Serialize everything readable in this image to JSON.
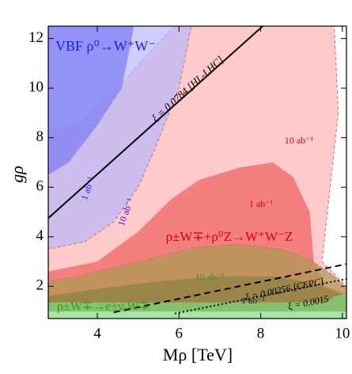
{
  "chart_data": {
    "type": "region",
    "xlabel": "Mρ [TeV]",
    "ylabel": "gρ",
    "xlim": [
      2.8,
      10.1
    ],
    "ylim": [
      0.7,
      12.5
    ],
    "xticks": [
      4,
      6,
      8,
      10
    ],
    "yticks": [
      2,
      4,
      6,
      8,
      10,
      12
    ],
    "regions": [
      {
        "color": "#ffb3b3",
        "dashed": true,
        "x": [
          2.8,
          2.8,
          3.6,
          4.5,
          5.3,
          5.9,
          9.8,
          9.9,
          9.7,
          9.5,
          10.1,
          10.1
        ],
        "y": [
          1.0,
          8.2,
          8.6,
          10.0,
          11.5,
          12.5,
          12.5,
          9.0,
          6.0,
          3.0,
          2.0,
          1.0
        ]
      },
      {
        "color": "#f06060",
        "dashed": false,
        "x": [
          2.8,
          2.8,
          4.0,
          5.0,
          5.8,
          6.5,
          7.5,
          8.3,
          8.8,
          9.2,
          9.3,
          9.6,
          10.1,
          10.1
        ],
        "y": [
          1.0,
          2.6,
          3.0,
          4.2,
          5.5,
          6.3,
          6.8,
          7.0,
          6.4,
          5.0,
          3.0,
          2.0,
          1.7,
          1.0
        ]
      },
      {
        "color": "#a89a50",
        "dashed": true,
        "x": [
          2.8,
          2.8,
          3.5,
          4.5,
          5.5,
          6.5,
          7.5,
          8.5,
          9.2,
          9.8,
          10.1,
          10.1
        ],
        "y": [
          1.0,
          2.2,
          2.4,
          2.8,
          3.2,
          3.6,
          3.7,
          3.5,
          3.1,
          2.4,
          1.9,
          1.0
        ]
      },
      {
        "color": "#8c8040",
        "dashed": false,
        "x": [
          2.8,
          2.8,
          4.0,
          5.5,
          7.0,
          8.5,
          9.5,
          10.1,
          10.1
        ],
        "y": [
          1.0,
          1.6,
          1.9,
          2.2,
          2.4,
          2.4,
          2.0,
          1.6,
          1.0
        ]
      },
      {
        "color": "#7ddc7d",
        "dashed": false,
        "x": [
          2.8,
          2.8,
          9.6,
          9.8,
          10.1,
          10.1
        ],
        "y": [
          0.7,
          1.35,
          1.35,
          1.6,
          1.7,
          0.7
        ]
      },
      {
        "color": "#b8b8ff",
        "dashed": true,
        "x": [
          2.8,
          6.3,
          6.0,
          5.4,
          5.0,
          4.4,
          3.7,
          2.8
        ],
        "y": [
          12.5,
          12.5,
          10.0,
          7.5,
          6.0,
          4.6,
          3.8,
          3.5
        ]
      },
      {
        "color": "#7a7af5",
        "dashed": false,
        "x": [
          2.8,
          4.9,
          4.6,
          4.0,
          3.3,
          2.8
        ],
        "y": [
          12.5,
          12.5,
          10.0,
          8.5,
          7.0,
          6.5
        ]
      }
    ],
    "lines": [
      {
        "label": "ξ = 0.0784 [HL-LHC]",
        "style": "solid",
        "x": [
          2.8,
          8.05
        ],
        "y": [
          4.75,
          12.5
        ]
      },
      {
        "label": "ξ = 0.00256 [CEPC]",
        "style": "dashed",
        "x": [
          4.4,
          10.1
        ],
        "y": [
          0.95,
          2.9
        ]
      },
      {
        "label": "ξ = 0.0015",
        "style": "dotted",
        "x": [
          5.9,
          10.1
        ],
        "y": [
          0.9,
          2.3
        ]
      }
    ],
    "annotations": [
      {
        "text": "VBF ρ⁰→W⁺W⁻",
        "color": "#1a1aff"
      },
      {
        "text": "1 ab⁻¹",
        "color": "#1a1aff"
      },
      {
        "text": "10 ab⁻¹",
        "color": "#1a1aff"
      },
      {
        "text": "10 ab⁻¹",
        "color": "#dd0000"
      },
      {
        "text": "1 ab⁻¹",
        "color": "#dd0000"
      },
      {
        "text": "ρ±W∓+ρ⁰Z→W⁺W⁻Z",
        "color": "#dd0000"
      },
      {
        "text": "10 ab⁻¹",
        "color": "#3a9a1a"
      },
      {
        "text": "1 ab⁻¹",
        "color": "#222222"
      },
      {
        "text": "ρ±W∓→e±νₑW∓",
        "color": "#3a9a1a"
      }
    ]
  }
}
